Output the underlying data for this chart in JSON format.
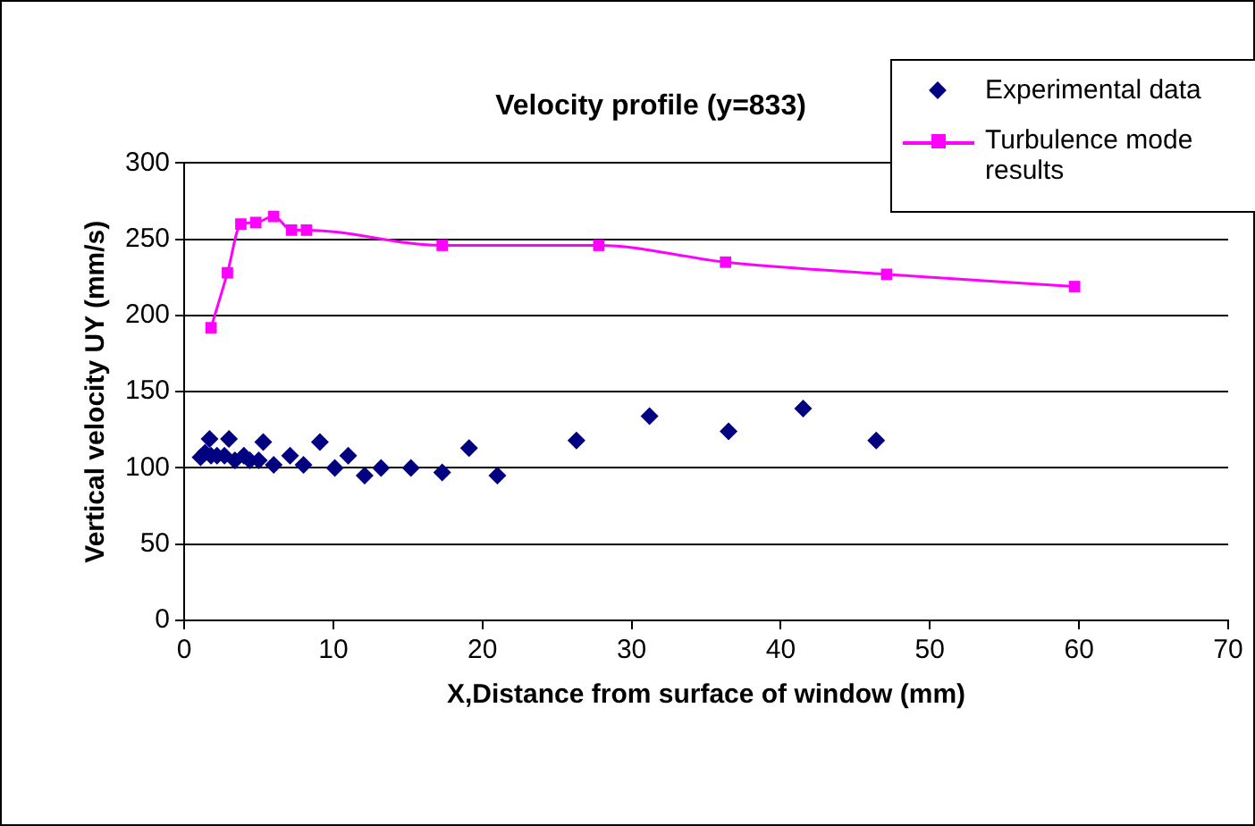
{
  "chart_data": {
    "type": "scatter",
    "title": "Velocity profile (y=833)",
    "xlabel": "X,Distance from surface of window (mm)",
    "ylabel": "Vertical velocity UY (mm/s)",
    "xlim": [
      0,
      70
    ],
    "xticks": [
      0,
      10,
      20,
      30,
      40,
      50,
      60,
      70
    ],
    "ylim": [
      0,
      300
    ],
    "yticks": [
      0,
      50,
      100,
      150,
      200,
      250,
      300
    ],
    "grid": "y",
    "legend": "top right",
    "series": [
      {
        "name": "Experimental data",
        "marker": "diamond",
        "color": "#000080",
        "x": [
          1.1,
          1.4,
          1.7,
          1.8,
          2.2,
          2.7,
          3.0,
          3.4,
          4.0,
          4.4,
          5.0,
          5.3,
          6.0,
          7.1,
          8.0,
          9.1,
          10.1,
          11.0,
          12.1,
          13.2,
          15.2,
          17.3,
          19.1,
          21.0,
          26.3,
          31.2,
          36.5,
          41.5,
          46.4
        ],
        "values": [
          107,
          110,
          119,
          108,
          108,
          108,
          119,
          105,
          108,
          105,
          105,
          117,
          102,
          108,
          102,
          117,
          100,
          108,
          95,
          100,
          100,
          97,
          113,
          95,
          118,
          134,
          124,
          139,
          118
        ]
      },
      {
        "name": "Turbulence mode results",
        "type": "line",
        "marker": "square",
        "color": "#ff00ff",
        "x": [
          1.8,
          2.9,
          3.8,
          4.8,
          6.0,
          7.2,
          8.2,
          17.3,
          27.8,
          36.3,
          47.1,
          59.7
        ],
        "values": [
          192,
          228,
          260,
          261,
          265,
          256,
          256,
          246,
          246,
          235,
          227,
          219
        ]
      }
    ]
  }
}
